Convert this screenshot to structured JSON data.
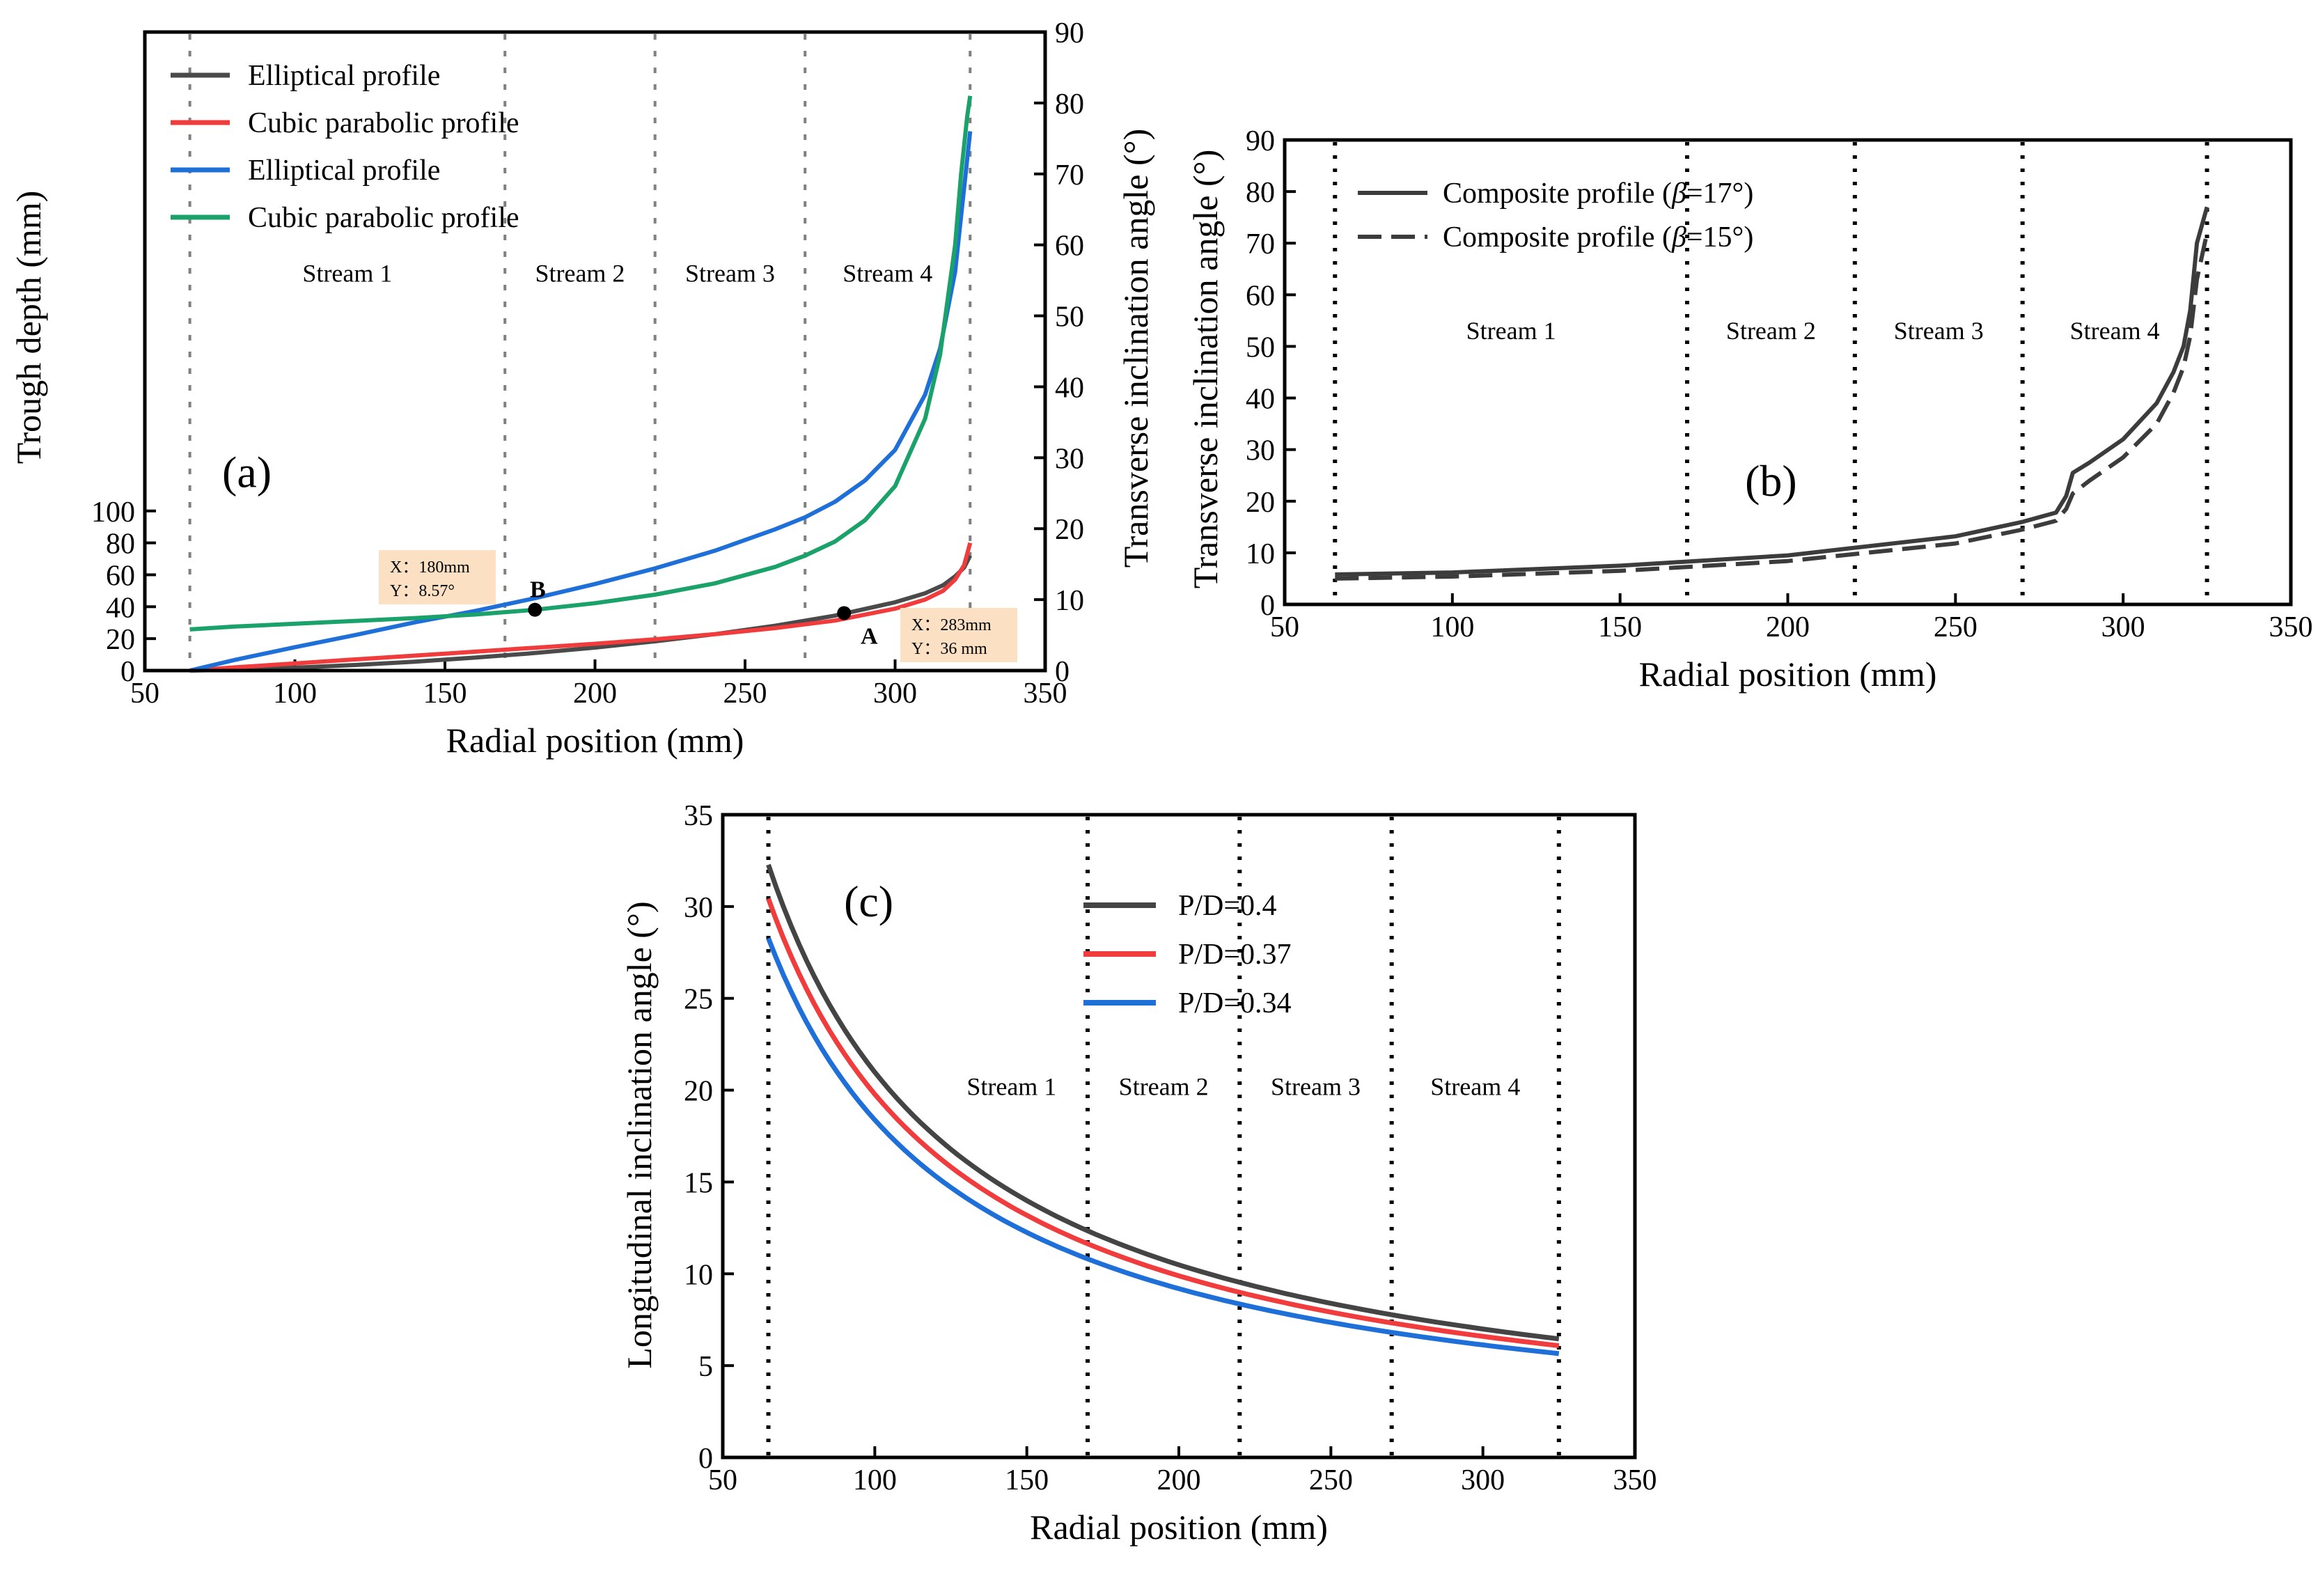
{
  "chart_data": [
    {
      "id": "a",
      "type": "line",
      "panel_label": "(a)",
      "xlabel": "Radial position (mm)",
      "ylabel": "Trough depth (mm)",
      "y2label": "Transverse inclination angle (°)",
      "xlim": [
        50,
        350
      ],
      "ylim": [
        0,
        400
      ],
      "y2lim": [
        0,
        90
      ],
      "xticks": [
        50,
        100,
        150,
        200,
        250,
        300,
        350
      ],
      "yticks": [
        0,
        20,
        40,
        60,
        80,
        100
      ],
      "y2ticks": [
        0,
        10,
        20,
        30,
        40,
        50,
        60,
        70,
        80,
        90
      ],
      "stream_boundaries": [
        65,
        170,
        220,
        270,
        325
      ],
      "stream_labels": [
        {
          "text": "Stream 1",
          "x": 117.5
        },
        {
          "text": "Stream 2",
          "x": 195
        },
        {
          "text": "Stream 3",
          "x": 245
        },
        {
          "text": "Stream 4",
          "x": 297.5
        }
      ],
      "stream_label_y2": 56,
      "panel_label_pos": {
        "x": 84,
        "y2": 28
      },
      "legend_position": "top-left",
      "series": [
        {
          "name": "Elliptical profile",
          "axis": "left",
          "color": "#4a4a4a",
          "x": [
            65,
            80,
            100,
            120,
            140,
            160,
            180,
            200,
            220,
            240,
            260,
            280,
            300,
            310,
            316,
            320,
            323,
            325
          ],
          "y": [
            0,
            0.6,
            1.8,
            3.5,
            5.6,
            8.1,
            11,
            14.4,
            18.3,
            22.8,
            28.1,
            34.4,
            42.8,
            48.4,
            53.5,
            59,
            64.5,
            72
          ]
        },
        {
          "name": "Cubic parabolic profile",
          "axis": "left",
          "color": "#f03c3c",
          "x": [
            65,
            80,
            100,
            120,
            140,
            160,
            180,
            200,
            220,
            240,
            260,
            280,
            300,
            310,
            316,
            320,
            323,
            325
          ],
          "y": [
            0,
            2,
            4.5,
            7,
            9.4,
            11.8,
            14.3,
            16.8,
            19.6,
            22.8,
            26.6,
            31.3,
            38.8,
            44.5,
            50,
            57,
            66,
            80
          ]
        },
        {
          "name": "Elliptical profile",
          "axis": "right",
          "color": "#1f6fd8",
          "x": [
            65,
            80,
            100,
            120,
            140,
            160,
            180,
            200,
            220,
            240,
            260,
            270,
            280,
            290,
            300,
            310,
            315,
            320,
            323,
            325
          ],
          "y": [
            0,
            1.5,
            3.3,
            5,
            6.8,
            8.4,
            10.2,
            12.2,
            14.4,
            16.9,
            19.9,
            21.6,
            23.8,
            26.8,
            31.1,
            38.9,
            45.4,
            56.2,
            68,
            76
          ]
        },
        {
          "name": "Cubic parabolic profile",
          "axis": "right",
          "color": "#1aa26a",
          "x": [
            65,
            80,
            100,
            120,
            140,
            160,
            180,
            200,
            220,
            240,
            260,
            270,
            280,
            290,
            300,
            310,
            315,
            320,
            322,
            324,
            325
          ],
          "y": [
            5.8,
            6.2,
            6.6,
            7,
            7.4,
            7.9,
            8.57,
            9.5,
            10.7,
            12.3,
            14.6,
            16.2,
            18.2,
            21.2,
            26,
            35.5,
            44.5,
            60,
            70,
            78,
            81
          ]
        }
      ],
      "markers": [
        {
          "label": "B",
          "x": 180,
          "y2": 8.57,
          "annotation": [
            "X：180mm",
            "Y：8.57°"
          ]
        },
        {
          "label": "A",
          "x": 283,
          "y": 36,
          "annotation": [
            "X：283mm",
            "Y：36 mm"
          ]
        }
      ],
      "colors": {
        "annotation_box": "#fce0c4"
      }
    },
    {
      "id": "b",
      "type": "line",
      "panel_label": "(b)",
      "xlabel": "Radial position (mm)",
      "ylabel": "Transverse inclination angle (°)",
      "xlim": [
        50,
        350
      ],
      "ylim": [
        0,
        90
      ],
      "xticks": [
        50,
        100,
        150,
        200,
        250,
        300,
        350
      ],
      "yticks": [
        0,
        10,
        20,
        30,
        40,
        50,
        60,
        70,
        80,
        90
      ],
      "stream_boundaries": [
        65,
        170,
        220,
        270,
        325
      ],
      "stream_labels": [
        {
          "text": "Stream 1",
          "x": 117.5
        },
        {
          "text": "Stream 2",
          "x": 195
        },
        {
          "text": "Stream 3",
          "x": 245
        },
        {
          "text": "Stream 4",
          "x": 297.5
        }
      ],
      "stream_label_y": 53,
      "panel_label_pos": {
        "x": 195,
        "y": 24
      },
      "legend_position": "top-left",
      "series": [
        {
          "name": "Composite profile (β=17°)",
          "name_parts": [
            "Composite profile (",
            "β",
            "=17°)"
          ],
          "style": "solid",
          "color": "#3c3c3c",
          "x": [
            65,
            100,
            150,
            200,
            250,
            270,
            280,
            283,
            285,
            290,
            300,
            310,
            315,
            318,
            320,
            322,
            325
          ],
          "y": [
            5.8,
            6.2,
            7.5,
            9.5,
            13.2,
            16,
            17.8,
            21,
            25.5,
            27.5,
            32,
            39,
            45,
            50,
            57,
            70,
            77
          ]
        },
        {
          "name": "Composite profile (β=15°)",
          "name_parts": [
            "Composite profile (",
            "β",
            "=15°)"
          ],
          "style": "dashed",
          "color": "#3c3c3c",
          "x": [
            65,
            100,
            150,
            200,
            250,
            270,
            280,
            283,
            285,
            290,
            300,
            310,
            315,
            318,
            320,
            322,
            325
          ],
          "y": [
            5,
            5.4,
            6.5,
            8.4,
            11.8,
            14.5,
            16.2,
            18.5,
            21.5,
            24,
            28.5,
            35,
            41,
            46,
            52,
            63,
            72
          ]
        }
      ]
    },
    {
      "id": "c",
      "type": "line",
      "panel_label": "(c)",
      "xlabel": "Radial position (mm)",
      "ylabel": "Longitudinal inclination angle (°)",
      "xlim": [
        50,
        350
      ],
      "ylim": [
        0,
        35
      ],
      "xticks": [
        50,
        100,
        150,
        200,
        250,
        300,
        350
      ],
      "yticks": [
        0,
        5,
        10,
        15,
        20,
        25,
        30,
        35
      ],
      "stream_boundaries": [
        65,
        170,
        220,
        270,
        325
      ],
      "stream_labels": [
        {
          "text": "Stream 1",
          "x": 145
        },
        {
          "text": "Stream 2",
          "x": 195
        },
        {
          "text": "Stream 3",
          "x": 245
        },
        {
          "text": "Stream 4",
          "x": 297.5
        }
      ],
      "stream_label_y": 20.2,
      "panel_label_pos": {
        "x": 98,
        "y": 30.3
      },
      "legend_position": "top-center",
      "series": [
        {
          "name": "P/D=0.4",
          "color": "#444444",
          "k": 2098,
          "x_range": [
            65,
            325
          ]
        },
        {
          "name": "P/D=0.37",
          "color": "#f03c3c",
          "k": 1978,
          "x_range": [
            65,
            325
          ]
        },
        {
          "name": "P/D=0.34",
          "color": "#1f6fd8",
          "k": 1838,
          "x_range": [
            65,
            325
          ]
        }
      ],
      "curve_form": "y = k / x"
    }
  ]
}
